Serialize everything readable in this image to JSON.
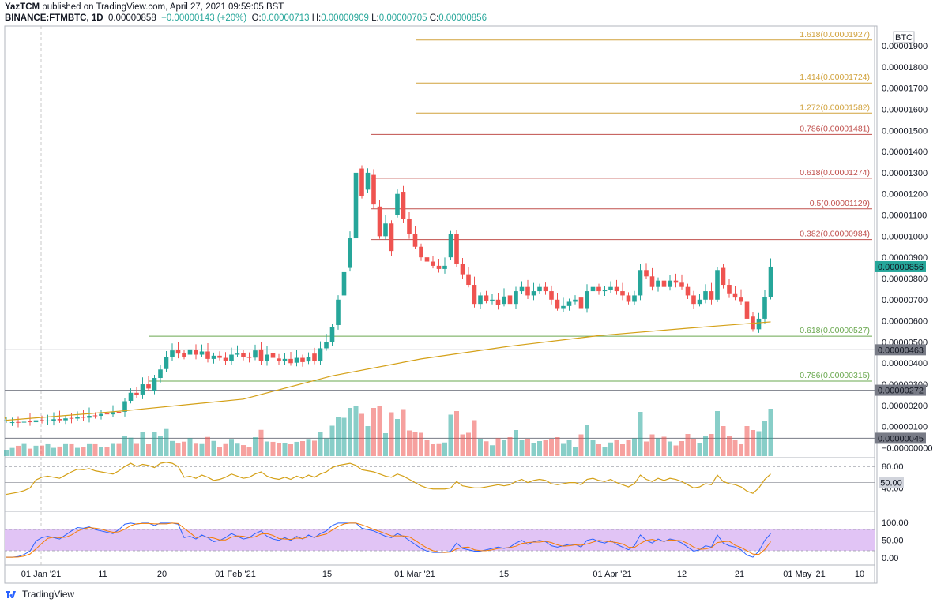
{
  "header": {
    "publisher": "YazTCM",
    "published_text": "published on TradingView.com, April 27, 2021 09:59:05 BST",
    "symbol": "BINANCE:FTMBTC, 1D",
    "last_price": "0.00000858",
    "change": "+0.00000143 (+20%)",
    "open_label": "O:",
    "open": "0.00000713",
    "high_label": "H:",
    "high": "0.00000909",
    "low_label": "L:",
    "low": "0.00000705",
    "close_label": "C:",
    "close": "0.00000856"
  },
  "price_axis": {
    "currency": "BTC",
    "ticks": [
      "0.00001900",
      "0.00001800",
      "0.00001700",
      "0.00001600",
      "0.00001500",
      "0.00001400",
      "0.00001300",
      "0.00001200",
      "0.00001100",
      "0.00001000",
      "0.00000900",
      "0.00000800",
      "0.00000700",
      "0.00000600",
      "0.00000500",
      "0.00000400",
      "0.00000300",
      "0.00000200",
      "0.00000100",
      "−0.00000000"
    ],
    "badges": [
      {
        "text": "0.00000856",
        "color": "#26a69a"
      },
      {
        "text": "0.00000463",
        "color": "#787b86"
      },
      {
        "text": "0.00000272",
        "color": "#787b86"
      },
      {
        "text": "0.00000045",
        "color": "#787b86"
      }
    ]
  },
  "fib_levels": [
    {
      "label": "1.618(0.00001927)",
      "price": 1927,
      "color": "#d1a23c"
    },
    {
      "label": "1.414(0.00001724)",
      "price": 1724,
      "color": "#d1a23c"
    },
    {
      "label": "1.272(0.00001582)",
      "price": 1582,
      "color": "#d1a23c"
    },
    {
      "label": "0.786(0.00001481)",
      "price": 1481,
      "color": "#c0504d"
    },
    {
      "label": "0.618(0.00001274)",
      "price": 1274,
      "color": "#c0504d"
    },
    {
      "label": "0.5(0.00001129)",
      "price": 1129,
      "color": "#c0504d"
    },
    {
      "label": "0.382(0.00000984)",
      "price": 984,
      "color": "#c0504d"
    },
    {
      "label": "0.618(0.00000527)",
      "price": 527,
      "color": "#6aa84f"
    },
    {
      "label": "0.786(0.00000315)",
      "price": 315,
      "color": "#6aa84f"
    }
  ],
  "rsi_axis": {
    "ticks": [
      "80.00",
      "40.00"
    ],
    "badge": "50.00"
  },
  "stoch_axis": {
    "ticks": [
      "100.00",
      "50.00",
      "0.00"
    ]
  },
  "time_axis": {
    "ticks": [
      "01 Jan '21",
      "11",
      "20",
      "01 Feb '21",
      "15",
      "01 Mar '21",
      "15",
      "01 Apr '21",
      "12",
      "21",
      "01 May '21",
      "10"
    ]
  },
  "footer": {
    "brand": "TradingView"
  },
  "colors": {
    "up": "#26a69a",
    "down": "#ef5350",
    "ma": "#d4a017",
    "rsi": "#d4a017",
    "stoch_k": "#2962ff",
    "stoch_d": "#f57c00",
    "stoch_band": "#e1c4f5"
  },
  "chart_data": {
    "type": "candlestick",
    "symbol": "FTMBTC",
    "interval": "1D",
    "price_unit": "0.00000001 BTC (satoshi)",
    "candles_oc": [
      [
        130,
        130
      ],
      [
        120,
        121
      ],
      [
        122,
        119
      ],
      [
        119,
        123
      ],
      [
        125,
        121
      ],
      [
        121,
        130
      ],
      [
        131,
        127
      ],
      [
        126,
        129
      ],
      [
        128,
        135
      ],
      [
        136,
        130
      ],
      [
        130,
        139
      ],
      [
        141,
        138
      ],
      [
        138,
        145
      ],
      [
        146,
        142
      ],
      [
        142,
        151
      ],
      [
        153,
        150
      ],
      [
        151,
        160
      ],
      [
        162,
        158
      ],
      [
        158,
        168
      ],
      [
        170,
        166
      ],
      [
        170,
        220
      ],
      [
        222,
        260
      ],
      [
        260,
        250
      ],
      [
        252,
        300
      ],
      [
        300,
        280
      ],
      [
        270,
        330
      ],
      [
        330,
        370
      ],
      [
        372,
        430
      ],
      [
        428,
        460
      ],
      [
        462,
        445
      ],
      [
        448,
        430
      ],
      [
        440,
        465
      ],
      [
        462,
        440
      ],
      [
        440,
        455
      ],
      [
        455,
        420
      ],
      [
        420,
        435
      ],
      [
        435,
        425
      ],
      [
        425,
        410
      ],
      [
        412,
        440
      ],
      [
        440,
        445
      ],
      [
        447,
        430
      ],
      [
        430,
        425
      ],
      [
        426,
        460
      ],
      [
        465,
        410
      ],
      [
        410,
        440
      ],
      [
        448,
        425
      ],
      [
        422,
        410
      ],
      [
        412,
        420
      ],
      [
        420,
        400
      ],
      [
        402,
        425
      ],
      [
        425,
        405
      ],
      [
        408,
        430
      ],
      [
        445,
        412
      ],
      [
        412,
        470
      ],
      [
        470,
        500
      ],
      [
        500,
        570
      ],
      [
        580,
        700
      ],
      [
        720,
        830
      ],
      [
        850,
        990
      ],
      [
        990,
        1300
      ],
      [
        1320,
        1190
      ],
      [
        1220,
        1300
      ],
      [
        1290,
        1150
      ],
      [
        1140,
        1000
      ],
      [
        1000,
        1060
      ],
      [
        1060,
        930
      ],
      [
        1100,
        1200
      ],
      [
        1210,
        1080
      ],
      [
        1080,
        1010
      ],
      [
        1010,
        950
      ],
      [
        950,
        900
      ],
      [
        900,
        880
      ],
      [
        880,
        860
      ],
      [
        860,
        845
      ],
      [
        845,
        860
      ],
      [
        900,
        1010
      ],
      [
        1010,
        870
      ],
      [
        870,
        820
      ],
      [
        820,
        770
      ],
      [
        770,
        680
      ],
      [
        680,
        720
      ],
      [
        720,
        695
      ],
      [
        695,
        700
      ],
      [
        700,
        675
      ],
      [
        680,
        715
      ],
      [
        720,
        680
      ],
      [
        680,
        740
      ],
      [
        740,
        760
      ],
      [
        760,
        720
      ],
      [
        720,
        740
      ],
      [
        740,
        760
      ],
      [
        760,
        740
      ],
      [
        740,
        700
      ],
      [
        700,
        660
      ],
      [
        660,
        670
      ],
      [
        670,
        690
      ],
      [
        690,
        700
      ],
      [
        710,
        660
      ],
      [
        660,
        740
      ],
      [
        740,
        760
      ],
      [
        760,
        740
      ],
      [
        740,
        745
      ],
      [
        745,
        760
      ],
      [
        760,
        740
      ],
      [
        740,
        720
      ],
      [
        720,
        690
      ],
      [
        690,
        720
      ],
      [
        720,
        840
      ],
      [
        840,
        810
      ],
      [
        810,
        760
      ],
      [
        760,
        790
      ],
      [
        790,
        760
      ],
      [
        760,
        790
      ],
      [
        790,
        780
      ],
      [
        780,
        760
      ],
      [
        760,
        720
      ],
      [
        720,
        680
      ],
      [
        680,
        700
      ],
      [
        700,
        740
      ],
      [
        740,
        700
      ],
      [
        700,
        840
      ],
      [
        850,
        770
      ],
      [
        770,
        730
      ],
      [
        730,
        710
      ],
      [
        710,
        690
      ],
      [
        690,
        610
      ],
      [
        620,
        560
      ],
      [
        560,
        610
      ],
      [
        610,
        713
      ],
      [
        713,
        856
      ]
    ],
    "ma": [
      {
        "idx": 0,
        "price": 130
      },
      {
        "idx": 20,
        "price": 175
      },
      {
        "idx": 40,
        "price": 230
      },
      {
        "idx": 55,
        "price": 340
      },
      {
        "idx": 70,
        "price": 420
      },
      {
        "idx": 85,
        "price": 480
      },
      {
        "idx": 100,
        "price": 530
      },
      {
        "idx": 115,
        "price": 565
      },
      {
        "idx": 129,
        "price": 595
      }
    ],
    "rsi": [
      28,
      30,
      32,
      35,
      40,
      55,
      60,
      62,
      60,
      58,
      64,
      70,
      75,
      74,
      76,
      72,
      70,
      68,
      66,
      72,
      80,
      86,
      80,
      84,
      82,
      78,
      86,
      88,
      86,
      80,
      60,
      62,
      58,
      64,
      60,
      54,
      56,
      60,
      66,
      62,
      58,
      60,
      66,
      70,
      62,
      58,
      56,
      60,
      56,
      62,
      58,
      64,
      60,
      66,
      70,
      78,
      82,
      84,
      86,
      82,
      74,
      72,
      70,
      66,
      62,
      60,
      66,
      62,
      56,
      50,
      44,
      40,
      38,
      38,
      38,
      40,
      52,
      44,
      42,
      40,
      40,
      42,
      44,
      46,
      44,
      46,
      52,
      56,
      50,
      54,
      56,
      54,
      48,
      46,
      48,
      50,
      50,
      46,
      56,
      58,
      54,
      52,
      56,
      50,
      46,
      42,
      48,
      64,
      56,
      52,
      58,
      54,
      58,
      56,
      52,
      46,
      40,
      42,
      48,
      46,
      64,
      52,
      48,
      46,
      42,
      34,
      30,
      40,
      56,
      66
    ]
  }
}
